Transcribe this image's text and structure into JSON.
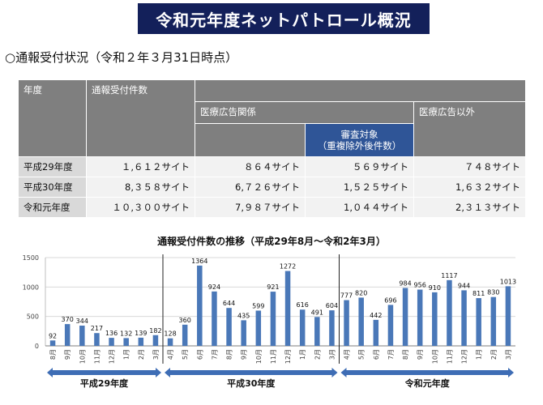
{
  "header": {
    "title": "令和元年度ネットパトロール概況"
  },
  "subtitle": "○通報受付状況（令和２年３月31日時点）",
  "table": {
    "h_year": "年度",
    "h_total": "通報受付件数",
    "h_ad": "医療広告関係",
    "h_review_1": "審査対象",
    "h_review_2": "（重複除外後件数）",
    "h_nonad": "医療広告以外",
    "rows": [
      {
        "year": "平成29年度",
        "total": "１,６１２サイト",
        "ad": "８６４サイト",
        "review": "５６９サイト",
        "nonad": "７４８サイト"
      },
      {
        "year": "平成30年度",
        "total": "8,３５８サイト",
        "ad": "6,７２６サイト",
        "review": "1,５２５サイト",
        "nonad": "1,６３２サイト"
      },
      {
        "year": "令和元年度",
        "total": "１０,３００サイト",
        "ad": "7,９８７サイト",
        "review": "1,０４４サイト",
        "nonad": "2,３１３サイト"
      }
    ]
  },
  "chart_data": {
    "type": "bar",
    "title": "通報受付件数の推移（平成29年8月～令和2年3月）",
    "ylim": [
      0,
      1500
    ],
    "yticks": [
      0,
      500,
      1000,
      1500
    ],
    "grid": true,
    "bar_color": "#4a78b8",
    "categories": [
      "8月",
      "9月",
      "10月",
      "11月",
      "12月",
      "1月",
      "2月",
      "3月",
      "4月",
      "5月",
      "6月",
      "7月",
      "8月",
      "9月",
      "10月",
      "11月",
      "12月",
      "1月",
      "2月",
      "3月",
      "4月",
      "5月",
      "6月",
      "7月",
      "8月",
      "9月",
      "10月",
      "11月",
      "12月",
      "1月",
      "2月",
      "3月"
    ],
    "values": [
      92,
      370,
      344,
      217,
      136,
      132,
      139,
      182,
      128,
      360,
      1364,
      924,
      644,
      435,
      599,
      921,
      1272,
      616,
      491,
      604,
      777,
      820,
      442,
      696,
      984,
      956,
      910,
      1117,
      944,
      811,
      830,
      1013
    ],
    "periods": [
      {
        "label": "平成29年度",
        "start": 0,
        "end": 7
      },
      {
        "label": "平成30年度",
        "start": 8,
        "end": 19
      },
      {
        "label": "令和元年度",
        "start": 20,
        "end": 31
      }
    ]
  }
}
